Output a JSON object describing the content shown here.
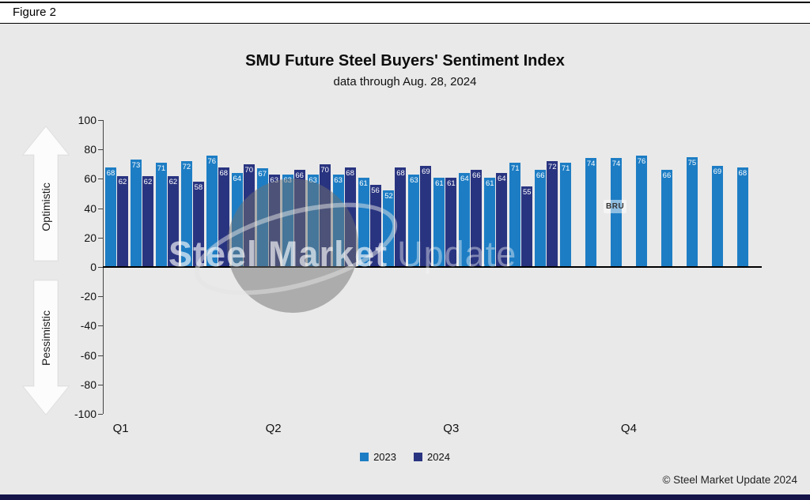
{
  "figure_label": "Figure 2",
  "chart_data": {
    "type": "bar",
    "title": "SMU Future Steel Buyers' Sentiment Index",
    "subtitle": "data through Aug. 28, 2024",
    "ylabel_positive": "Optimistic",
    "ylabel_negative": "Pessimistic",
    "ylim": [
      -100,
      100
    ],
    "yticks": [
      100,
      80,
      60,
      40,
      20,
      0,
      -20,
      -40,
      -60,
      -80,
      -100
    ],
    "grid": false,
    "legend_position": "bottom",
    "x_labels": [
      "Q1",
      "Q2",
      "Q3",
      "Q4"
    ],
    "x_label_pos_pct": [
      2.6,
      25.8,
      52.8,
      79.8
    ],
    "series": [
      {
        "name": "2023",
        "color": "#1d7dc4",
        "values": [
          68,
          73,
          71,
          72,
          76,
          64,
          67,
          63,
          63,
          63,
          61,
          52,
          63,
          61,
          64,
          61,
          71,
          66,
          71,
          74,
          74,
          76,
          66,
          75,
          69,
          68
        ]
      },
      {
        "name": "2024",
        "color": "#293480",
        "values": [
          62,
          62,
          62,
          58,
          68,
          70,
          63,
          66,
          70,
          68,
          56,
          68,
          69,
          61,
          66,
          64,
          55,
          72
        ]
      }
    ]
  },
  "watermark": {
    "strong": "Steel Market",
    "light": "Update",
    "badge": "BRU"
  },
  "copyright": "© Steel Market Update 2024"
}
